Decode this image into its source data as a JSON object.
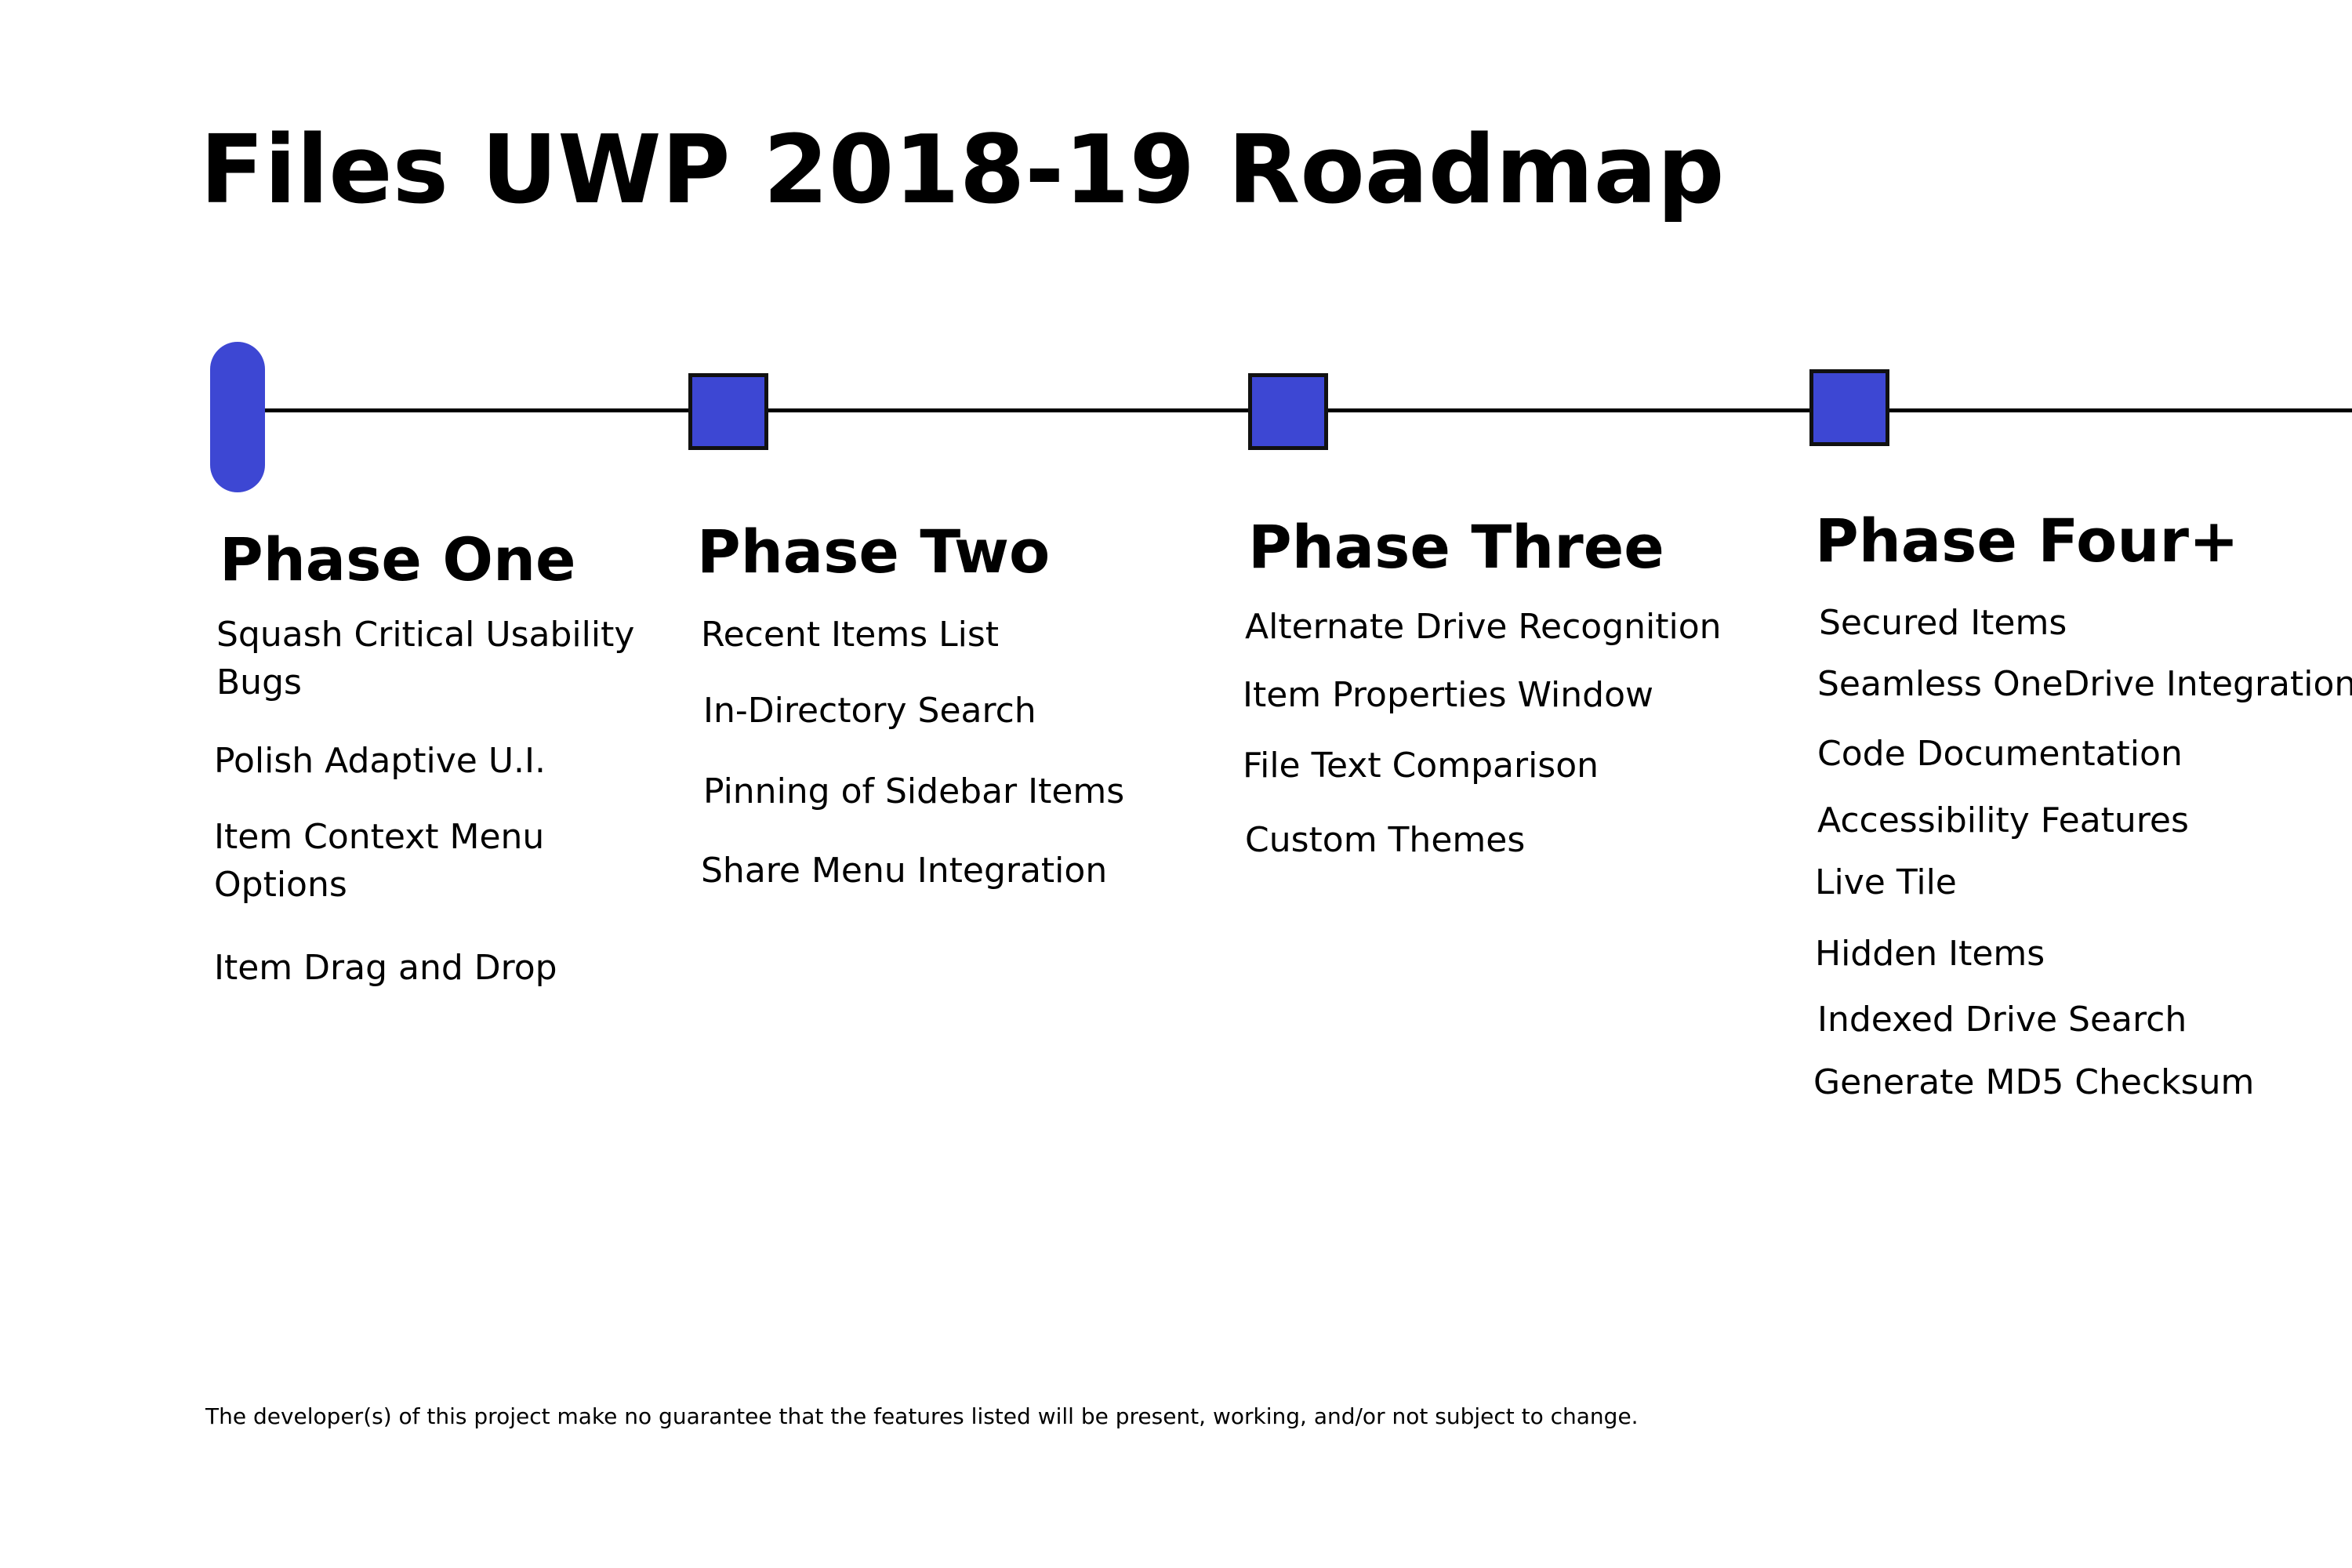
{
  "title": "Files UWP 2018-19 Roadmap",
  "colors": {
    "accent": "#3d47d3",
    "line": "#000000",
    "text": "#000000",
    "background": "#ffffff"
  },
  "phases": [
    {
      "title": "Phase One",
      "items": [
        "Squash Critical Usability",
        "Bugs",
        "Polish Adaptive U.I.",
        "Item Context Menu",
        "Options",
        "Item Drag and Drop"
      ]
    },
    {
      "title": "Phase Two",
      "items": [
        "Recent Items List",
        "In-Directory Search",
        "Pinning of Sidebar Items",
        "Share Menu Integration"
      ]
    },
    {
      "title": "Phase Three",
      "items": [
        "Alternate Drive Recognition",
        "Item Properties Window",
        "File Text Comparison",
        "Custom Themes"
      ]
    },
    {
      "title": "Phase Four+",
      "items": [
        "Secured Items",
        "Seamless OneDrive Integration",
        "Code Documentation",
        "Accessibility Features",
        "Live Tile",
        "Hidden Items",
        "Indexed Drive Search",
        "Generate MD5 Checksum"
      ]
    }
  ],
  "footnote": "The developer(s) of this project make no guarantee that the features listed will be present, working, and/or not subject to change."
}
